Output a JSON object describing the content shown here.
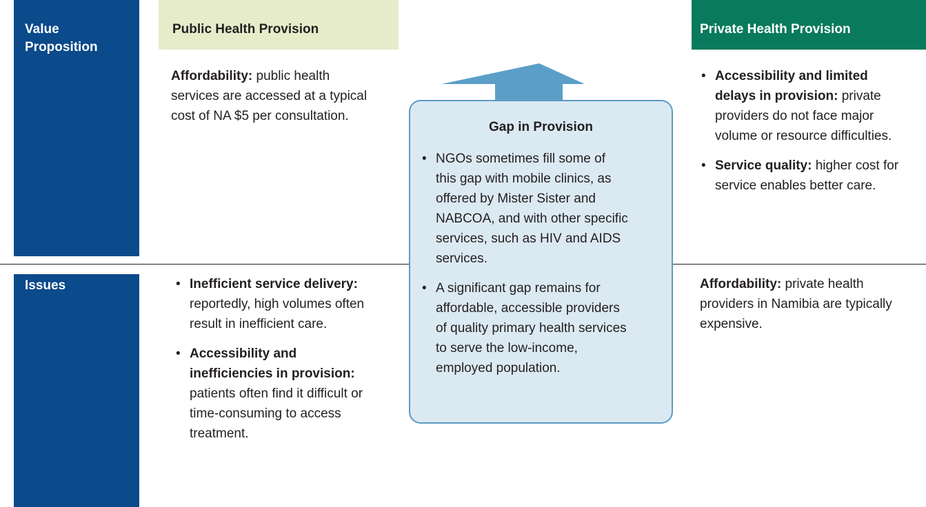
{
  "row_labels": [
    "Value Proposition",
    "Issues"
  ],
  "public": {
    "header": "Public Health Provision",
    "value_proposition": {
      "bold": "Affordability:",
      "text": "public health services are accessed at a typical cost of NA $5 per consultation."
    },
    "issues": [
      {
        "bold": "Inefficient service delivery:",
        "text": "reportedly, high volumes often result in inefficient care."
      },
      {
        "bold": "Accessibility and inefficiencies in provision:",
        "text": "patients often find it difficult or time-consuming to access treatment."
      }
    ]
  },
  "gap": {
    "title": "Gap in Provision",
    "bullets": [
      "NGOs sometimes fill some of this gap with mobile clinics, as offered by Mister Sister and NABCOA, and with other specific services, such as HIV and AIDS services.",
      "A significant gap remains for affordable, accessible providers of quality primary health services to serve the low-income, employed population."
    ]
  },
  "private": {
    "header": "Private Health Provision",
    "value_proposition": [
      {
        "bold": "Accessibility and limited delays in provision:",
        "text": "private providers do not face major volume or resource difficulties."
      },
      {
        "bold": "Service quality:",
        "text": "higher cost for service enables better care."
      }
    ],
    "issues": {
      "bold": "Affordability:",
      "text": "private health providers in Namibia are typically expensive."
    }
  }
}
